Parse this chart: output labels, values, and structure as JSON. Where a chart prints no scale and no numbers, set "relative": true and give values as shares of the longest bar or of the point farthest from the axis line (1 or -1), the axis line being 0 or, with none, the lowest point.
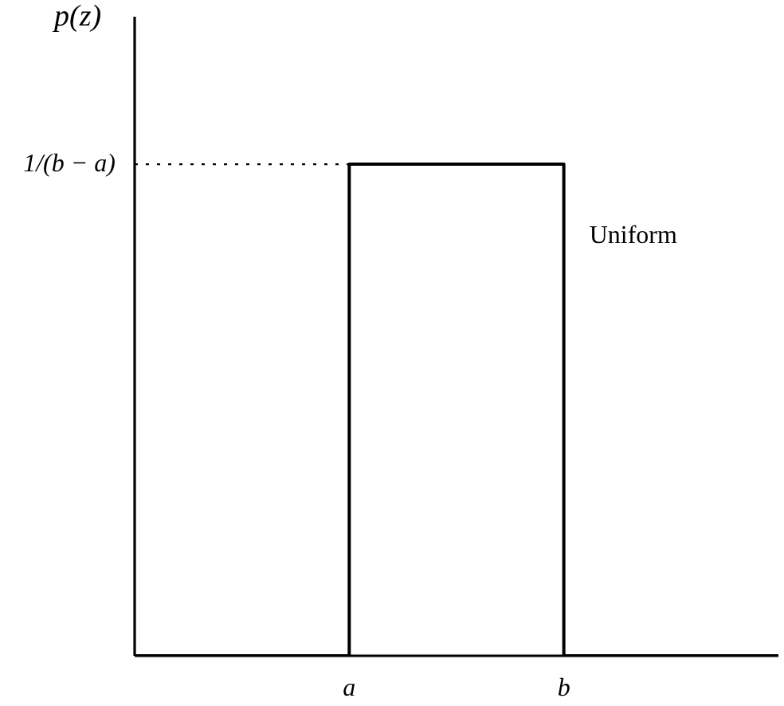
{
  "chart_data": {
    "type": "step",
    "ylabel": "p(z)",
    "relative": true,
    "categories": [
      null,
      "a",
      "b",
      null
    ],
    "series": [
      {
        "name": "Uniform",
        "color": "#000000",
        "values": [
          0,
          1,
          0,
          0
        ]
      }
    ],
    "ref_lines": [
      {
        "axis": "y",
        "value": 1,
        "label": "1/(b − a)",
        "line_style": "dotted",
        "color": "#000000"
      }
    ],
    "grid": false,
    "legend": false,
    "line_style": "solid"
  }
}
